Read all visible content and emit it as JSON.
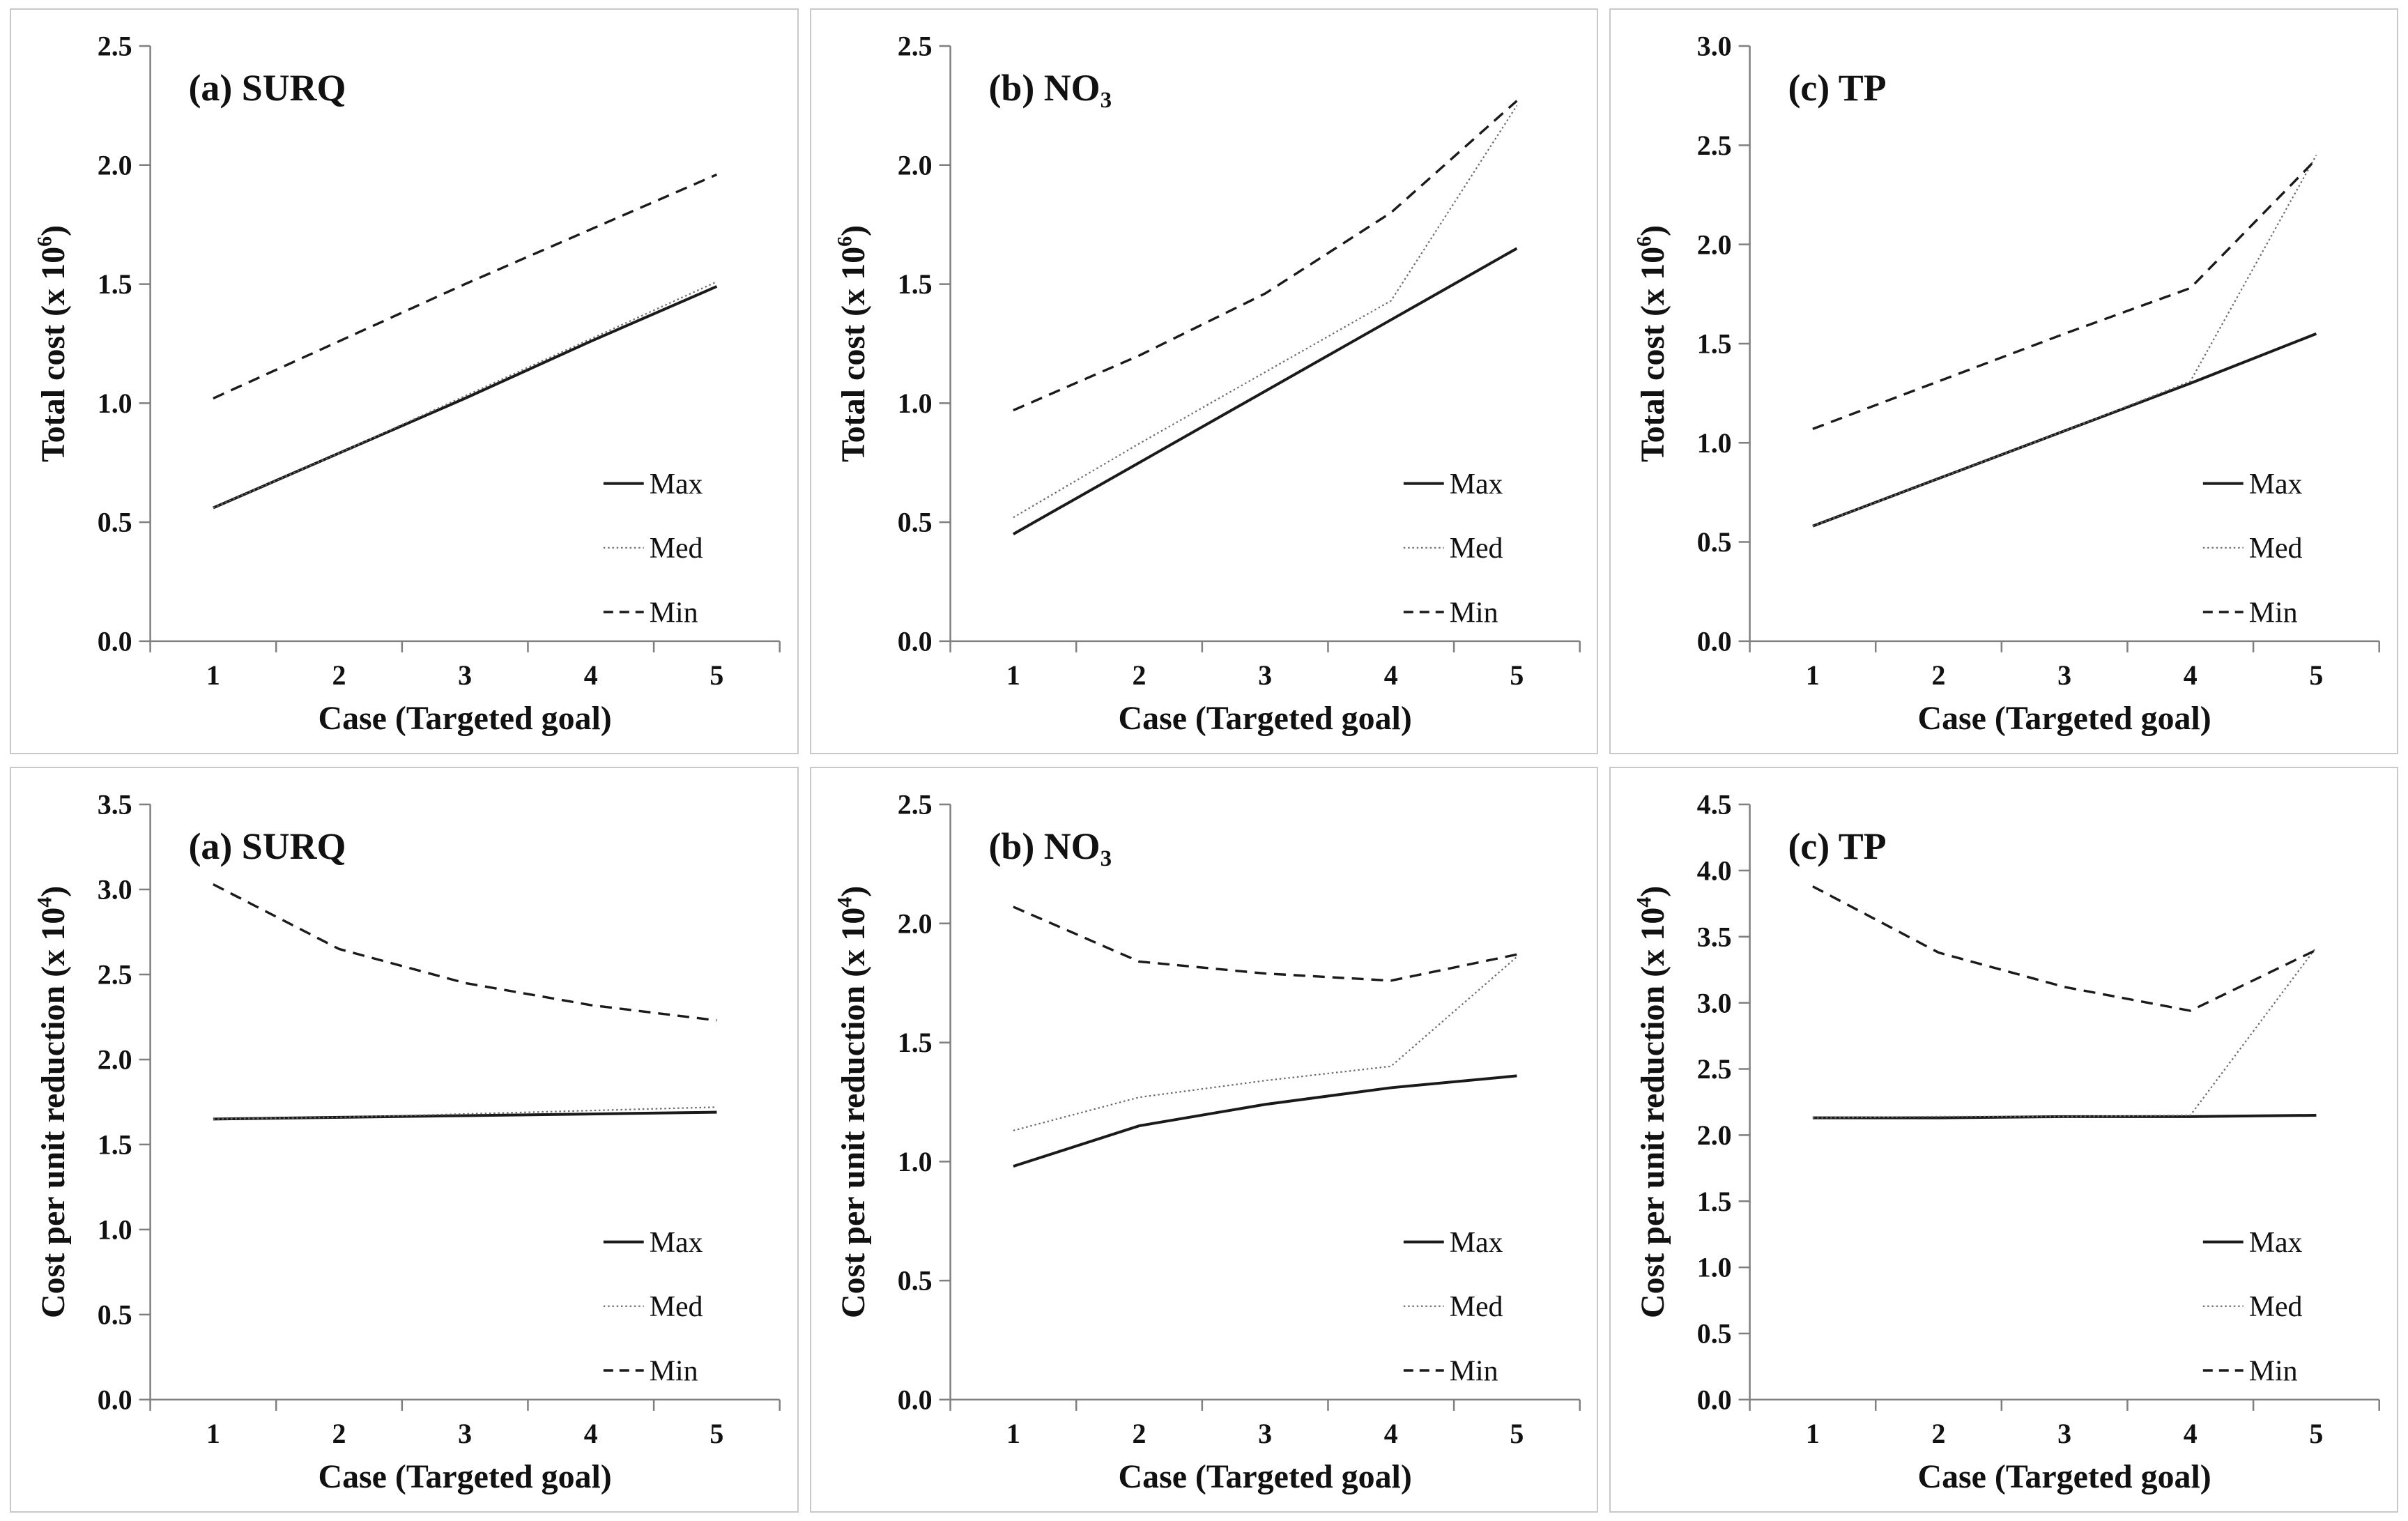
{
  "figure": {
    "rows": 2,
    "cols": 3,
    "background": "#ffffff",
    "panel_border_color": "#c9c9c9"
  },
  "colors": {
    "axis": "#7f7f7f",
    "text": "#111111",
    "line_solid": "#1a1a1a",
    "line_dotted": "#6b6b6b",
    "line_dashed": "#1a1a1a"
  },
  "chart_data": [
    {
      "name": "total-cost-surq",
      "type": "line",
      "title_parts": [
        {
          "t": "(a) SURQ"
        }
      ],
      "ylabel_parts": [
        {
          "t": "Total cost (x 10"
        },
        {
          "t": "6",
          "sup": true
        },
        {
          "t": ")"
        }
      ],
      "xlabel": "Case (Targeted goal)",
      "x": [
        1,
        2,
        3,
        4,
        5
      ],
      "ylim": [
        0.0,
        2.5
      ],
      "ytick_step": 0.5,
      "grid": false,
      "legend_position": "lower-right",
      "series": [
        {
          "name": "Max",
          "style": "solid",
          "values": [
            0.56,
            0.79,
            1.02,
            1.26,
            1.49
          ]
        },
        {
          "name": "Med",
          "style": "dotted",
          "values": [
            0.56,
            0.79,
            1.03,
            1.27,
            1.51
          ]
        },
        {
          "name": "Min",
          "style": "dashed",
          "values": [
            1.02,
            1.26,
            1.5,
            1.73,
            1.96
          ]
        }
      ]
    },
    {
      "name": "total-cost-no3",
      "type": "line",
      "title_parts": [
        {
          "t": "(b) NO"
        },
        {
          "t": "3",
          "sub": true
        }
      ],
      "ylabel_parts": [
        {
          "t": "Total cost (x 10"
        },
        {
          "t": "6",
          "sup": true
        },
        {
          "t": ")"
        }
      ],
      "xlabel": "Case (Targeted goal)",
      "x": [
        1,
        2,
        3,
        4,
        5
      ],
      "ylim": [
        0.0,
        2.5
      ],
      "ytick_step": 0.5,
      "grid": false,
      "legend_position": "lower-right",
      "series": [
        {
          "name": "Max",
          "style": "solid",
          "values": [
            0.45,
            0.75,
            1.05,
            1.35,
            1.65
          ]
        },
        {
          "name": "Med",
          "style": "dotted",
          "values": [
            0.52,
            0.83,
            1.13,
            1.43,
            2.25
          ]
        },
        {
          "name": "Min",
          "style": "dashed",
          "values": [
            0.97,
            1.2,
            1.46,
            1.8,
            2.27
          ]
        }
      ]
    },
    {
      "name": "total-cost-tp",
      "type": "line",
      "title_parts": [
        {
          "t": "(c) TP"
        }
      ],
      "ylabel_parts": [
        {
          "t": "Total cost (x 10"
        },
        {
          "t": "6",
          "sup": true
        },
        {
          "t": ")"
        }
      ],
      "xlabel": "Case (Targeted goal)",
      "x": [
        1,
        2,
        3,
        4,
        5
      ],
      "ylim": [
        0.0,
        3.0
      ],
      "ytick_step": 0.5,
      "grid": false,
      "legend_position": "lower-right",
      "series": [
        {
          "name": "Max",
          "style": "solid",
          "values": [
            0.58,
            0.82,
            1.06,
            1.3,
            1.55
          ]
        },
        {
          "name": "Med",
          "style": "dotted",
          "values": [
            0.58,
            0.82,
            1.06,
            1.31,
            2.45
          ]
        },
        {
          "name": "Min",
          "style": "dashed",
          "values": [
            1.07,
            1.31,
            1.55,
            1.78,
            2.43
          ]
        }
      ]
    },
    {
      "name": "cost-per-unit-reduction-surq",
      "type": "line",
      "title_parts": [
        {
          "t": "(a) SURQ"
        }
      ],
      "ylabel_parts": [
        {
          "t": "Cost per unit reduction (x 10"
        },
        {
          "t": "4",
          "sup": true
        },
        {
          "t": ")"
        }
      ],
      "xlabel": "Case (Targeted goal)",
      "x": [
        1,
        2,
        3,
        4,
        5
      ],
      "ylim": [
        0.0,
        3.5
      ],
      "ytick_step": 0.5,
      "grid": false,
      "legend_position": "lower-right",
      "series": [
        {
          "name": "Max",
          "style": "solid",
          "values": [
            1.65,
            1.66,
            1.67,
            1.68,
            1.69
          ]
        },
        {
          "name": "Med",
          "style": "dotted",
          "values": [
            1.65,
            1.66,
            1.68,
            1.7,
            1.72
          ]
        },
        {
          "name": "Min",
          "style": "dashed",
          "values": [
            3.03,
            2.65,
            2.45,
            2.32,
            2.23
          ]
        }
      ]
    },
    {
      "name": "cost-per-unit-reduction-no3",
      "type": "line",
      "title_parts": [
        {
          "t": "(b) NO"
        },
        {
          "t": "3",
          "sub": true
        }
      ],
      "ylabel_parts": [
        {
          "t": "Cost per unit reduction (x 10"
        },
        {
          "t": "4",
          "sup": true
        },
        {
          "t": ")"
        }
      ],
      "xlabel": "Case (Targeted goal)",
      "x": [
        1,
        2,
        3,
        4,
        5
      ],
      "ylim": [
        0.0,
        2.5
      ],
      "ytick_step": 0.5,
      "grid": false,
      "legend_position": "lower-right",
      "series": [
        {
          "name": "Max",
          "style": "solid",
          "values": [
            0.98,
            1.15,
            1.24,
            1.31,
            1.36
          ]
        },
        {
          "name": "Med",
          "style": "dotted",
          "values": [
            1.13,
            1.27,
            1.34,
            1.4,
            1.86
          ]
        },
        {
          "name": "Min",
          "style": "dashed",
          "values": [
            2.07,
            1.84,
            1.79,
            1.76,
            1.87
          ]
        }
      ]
    },
    {
      "name": "cost-per-unit-reduction-tp",
      "type": "line",
      "title_parts": [
        {
          "t": "(c) TP"
        }
      ],
      "ylabel_parts": [
        {
          "t": "Cost per unit reduction (x 10"
        },
        {
          "t": "4",
          "sup": true
        },
        {
          "t": ")"
        }
      ],
      "xlabel": "Case (Targeted goal)",
      "x": [
        1,
        2,
        3,
        4,
        5
      ],
      "ylim": [
        0.0,
        4.5
      ],
      "ytick_step": 0.5,
      "grid": false,
      "legend_position": "lower-right",
      "series": [
        {
          "name": "Max",
          "style": "solid",
          "values": [
            2.13,
            2.13,
            2.14,
            2.14,
            2.15
          ]
        },
        {
          "name": "Med",
          "style": "dotted",
          "values": [
            2.13,
            2.14,
            2.14,
            2.15,
            3.42
          ]
        },
        {
          "name": "Min",
          "style": "dashed",
          "values": [
            3.88,
            3.38,
            3.12,
            2.94,
            3.4
          ]
        }
      ]
    }
  ]
}
